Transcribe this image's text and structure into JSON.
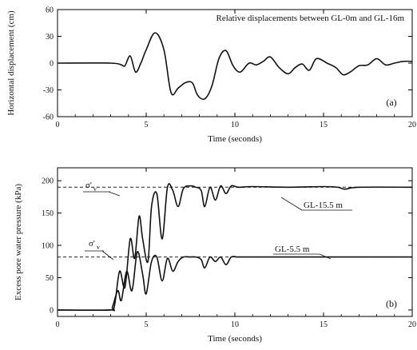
{
  "chart_data": [
    {
      "type": "line",
      "panel_label": "(a)",
      "annotation": "Relative displacements between GL-0m and GL-16m",
      "xlabel": "Time  (seconds)",
      "ylabel": "Horizontal displacement  (cm)",
      "xlim": [
        0,
        20
      ],
      "ylim": [
        -60,
        60
      ],
      "xticks": [
        "0",
        "5",
        "10",
        "15",
        "20"
      ],
      "yticks": [
        "60",
        "30",
        "0",
        "-30",
        "-60"
      ],
      "grid": false,
      "series": [
        {
          "x": [
            0,
            3.0,
            3.6,
            3.8,
            4.1,
            4.4,
            4.7,
            5.0,
            5.5,
            6.0,
            6.4,
            6.8,
            7.2,
            7.6,
            7.9,
            8.3,
            8.7,
            9.1,
            9.5,
            9.9,
            10.3,
            10.8,
            11.2,
            11.6,
            12.0,
            12.5,
            13.0,
            13.4,
            13.8,
            14.2,
            14.6,
            15.2,
            15.7,
            16.1,
            16.5,
            17.0,
            17.5,
            18.0,
            18.5,
            19.0,
            19.5,
            20.0
          ],
          "y": [
            0,
            0,
            -2,
            -3,
            8,
            -10,
            0,
            15,
            34,
            15,
            -33,
            -28,
            -22,
            -22,
            -36,
            -40,
            -26,
            5,
            14,
            -3,
            -10,
            0,
            -2,
            2,
            7,
            -5,
            -12,
            -5,
            -1,
            -8,
            5,
            0,
            -5,
            -13,
            -10,
            -3,
            -2,
            5,
            -2,
            0,
            2,
            2
          ]
        }
      ]
    },
    {
      "type": "line",
      "panel_label": "(b)",
      "xlabel": "Time  (seconds)",
      "ylabel": "Excess pore water pressure  (kPa)",
      "xlim": [
        0,
        20
      ],
      "ylim": [
        -10,
        220
      ],
      "xticks": [
        "0",
        "5",
        "10",
        "15",
        "20"
      ],
      "yticks": [
        "200",
        "150",
        "100",
        "50",
        "0"
      ],
      "grid": false,
      "reference_lines": [
        {
          "symbol": "σ'",
          "subscript": "v",
          "value": 190
        },
        {
          "symbol": "σ'",
          "subscript": "v",
          "value": 82
        }
      ],
      "series": [
        {
          "name": "GL-15.5 m",
          "x": [
            0,
            2.9,
            3.2,
            3.5,
            3.8,
            4.1,
            4.35,
            4.6,
            4.8,
            5.1,
            5.3,
            5.6,
            5.9,
            6.2,
            6.5,
            6.8,
            7.1,
            7.5,
            7.8,
            8.1,
            8.3,
            8.6,
            8.9,
            9.2,
            9.5,
            9.8,
            10.2,
            11,
            13,
            15,
            15.8,
            16.2,
            17,
            20
          ],
          "y": [
            0,
            0,
            5,
            60,
            35,
            110,
            80,
            145,
            110,
            75,
            160,
            180,
            110,
            190,
            185,
            160,
            188,
            192,
            190,
            185,
            160,
            190,
            170,
            192,
            180,
            192,
            190,
            191,
            190,
            191,
            190,
            187,
            190,
            190
          ]
        },
        {
          "name": "GL-5.5 m",
          "x": [
            0,
            2.9,
            3.1,
            3.4,
            3.6,
            3.9,
            4.2,
            4.5,
            4.8,
            5.0,
            5.3,
            5.6,
            5.9,
            6.2,
            6.5,
            6.8,
            7.1,
            7.5,
            7.8,
            8.1,
            8.3,
            8.6,
            8.9,
            9.2,
            9.5,
            9.8,
            10.2,
            11,
            20
          ],
          "y": [
            0,
            0,
            5,
            30,
            15,
            60,
            30,
            90,
            55,
            25,
            75,
            82,
            45,
            80,
            60,
            75,
            82,
            82,
            82,
            78,
            65,
            82,
            75,
            82,
            70,
            82,
            82,
            82,
            82
          ]
        }
      ]
    }
  ]
}
